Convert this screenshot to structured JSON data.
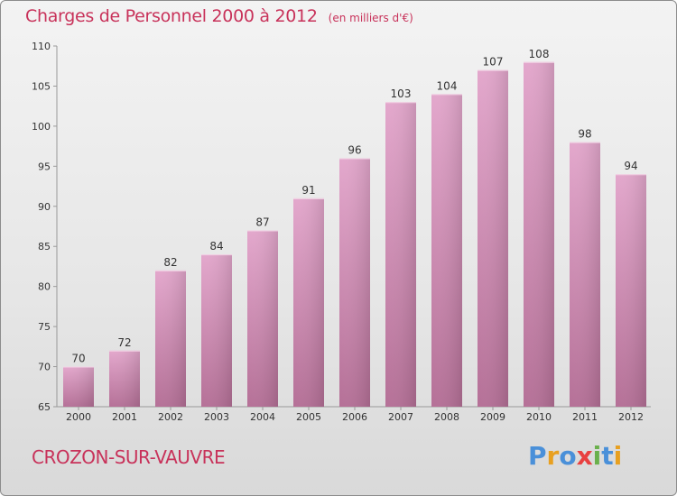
{
  "header": {
    "title": "Charges de Personnel 2000 à 2012",
    "subtitle": "(en milliers d'€)"
  },
  "footer": {
    "city": "CROZON-SUR-VAUVRE",
    "brand": "Proxiti"
  },
  "colors": {
    "title": "#c8325a",
    "bar_top": "#e3a7cc",
    "bar_bottom": "#b57097",
    "background_top": "#f3f3f3",
    "background_bottom": "#d9d9d9",
    "logo_letters": [
      "#4a90d9",
      "#e8a020",
      "#4a90d9",
      "#e84040",
      "#6ab04c",
      "#4a90d9",
      "#e8a020"
    ]
  },
  "chart_data": {
    "type": "bar",
    "title": "Charges de Personnel 2000 à 2012",
    "subtitle": "(en milliers d'€)",
    "categories": [
      "2000",
      "2001",
      "2002",
      "2003",
      "2004",
      "2005",
      "2006",
      "2007",
      "2008",
      "2009",
      "2010",
      "2011",
      "2012"
    ],
    "values": [
      70,
      72,
      82,
      84,
      87,
      91,
      96,
      103,
      104,
      107,
      108,
      98,
      94
    ],
    "ylim": [
      65,
      110
    ],
    "yticks": [
      65,
      70,
      75,
      80,
      85,
      90,
      95,
      100,
      105,
      110
    ],
    "grid": false,
    "data_labels": true,
    "legend": "none"
  }
}
